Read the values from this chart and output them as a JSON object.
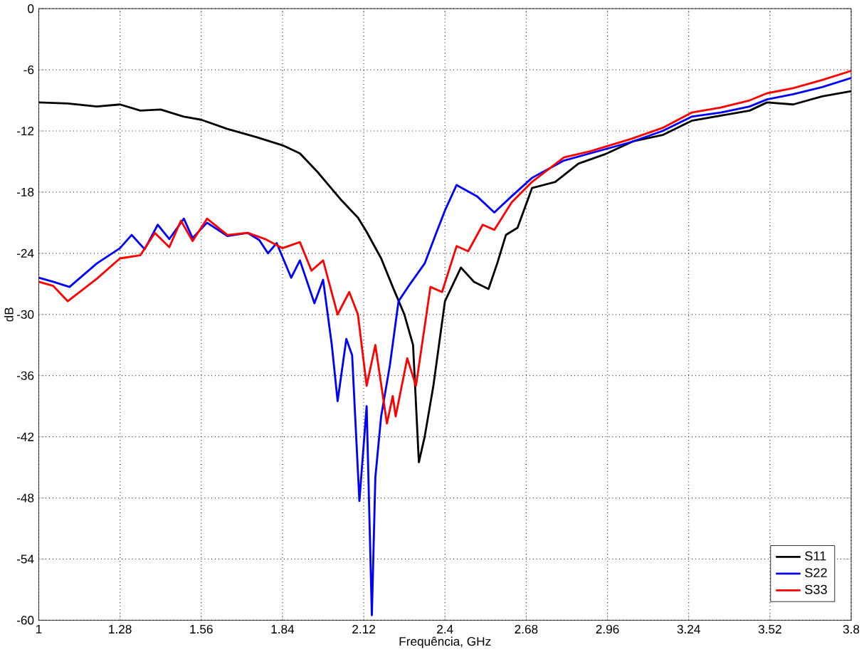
{
  "chart_data": {
    "type": "line",
    "xlabel": "Frequência, GHz",
    "ylabel": "dB",
    "xlim": [
      1,
      3.8
    ],
    "ylim": [
      -60,
      0
    ],
    "xticks": [
      1,
      1.28,
      1.56,
      1.84,
      2.12,
      2.4,
      2.68,
      2.96,
      3.24,
      3.52,
      3.8
    ],
    "yticks": [
      -60,
      -54,
      -48,
      -42,
      -36,
      -30,
      -24,
      -18,
      -12,
      -6,
      0
    ],
    "grid": true,
    "legend": "bottom right",
    "line_style": "solid",
    "marker": "none",
    "series": [
      {
        "name": "S11",
        "color": "#000000",
        "x": [
          1,
          1.1,
          1.2,
          1.28,
          1.35,
          1.42,
          1.5,
          1.56,
          1.65,
          1.75,
          1.84,
          1.9,
          1.96,
          2.04,
          2.1,
          2.13,
          2.18,
          2.22,
          2.26,
          2.29,
          2.31,
          2.33,
          2.36,
          2.4,
          2.455,
          2.5,
          2.55,
          2.58,
          2.61,
          2.65,
          2.7,
          2.78,
          2.86,
          2.95,
          3.05,
          3.15,
          3.25,
          3.35,
          3.45,
          3.51,
          3.6,
          3.7,
          3.8
        ],
        "values": [
          -9.2,
          -9.3,
          -9.6,
          -9.4,
          -10,
          -9.9,
          -10.6,
          -10.9,
          -11.8,
          -12.6,
          -13.4,
          -14.2,
          -16,
          -18.7,
          -20.5,
          -21.9,
          -24.5,
          -27.3,
          -30,
          -33,
          -44.5,
          -42,
          -37,
          -28.7,
          -25.4,
          -26.8,
          -27.5,
          -25,
          -22.2,
          -21.5,
          -17.6,
          -17,
          -15.2,
          -14.3,
          -13,
          -12.4,
          -11,
          -10.5,
          -10,
          -9.2,
          -9.4,
          -8.6,
          -8.1
        ]
      },
      {
        "name": "S22",
        "color": "#0000ff",
        "x": [
          1,
          1.05,
          1.106,
          1.2,
          1.28,
          1.32,
          1.365,
          1.41,
          1.45,
          1.5,
          1.53,
          1.58,
          1.65,
          1.72,
          1.76,
          1.79,
          1.82,
          1.87,
          1.9,
          1.95,
          1.98,
          2.01,
          2.03,
          2.06,
          2.08,
          2.105,
          2.13,
          2.148,
          2.16,
          2.18,
          2.21,
          2.24,
          2.28,
          2.33,
          2.37,
          2.4,
          2.44,
          2.51,
          2.57,
          2.63,
          2.7,
          2.81,
          2.9,
          3.04,
          3.15,
          3.25,
          3.35,
          3.45,
          3.51,
          3.6,
          3.7,
          3.8
        ],
        "values": [
          -26.4,
          -26.8,
          -27.3,
          -25,
          -23.5,
          -22.2,
          -23.6,
          -21.2,
          -22.6,
          -20.6,
          -22.5,
          -21,
          -22.3,
          -22,
          -22.7,
          -24,
          -23,
          -26.4,
          -24.7,
          -28.9,
          -26.6,
          -33,
          -38.5,
          -32.4,
          -34,
          -48.3,
          -39,
          -59.5,
          -46,
          -40,
          -35,
          -28.7,
          -27,
          -25,
          -22,
          -19.8,
          -17.3,
          -18.4,
          -20,
          -18.4,
          -16.6,
          -14.9,
          -14.2,
          -13.1,
          -12,
          -10.6,
          -10.2,
          -9.6,
          -8.9,
          -8.4,
          -7.7,
          -6.8
        ]
      },
      {
        "name": "S33",
        "color": "#ff0000",
        "x": [
          1,
          1.05,
          1.1,
          1.2,
          1.28,
          1.35,
          1.4,
          1.45,
          1.49,
          1.53,
          1.58,
          1.65,
          1.72,
          1.78,
          1.84,
          1.9,
          1.94,
          1.98,
          2.03,
          2.07,
          2.1,
          2.13,
          2.16,
          2.2,
          2.22,
          2.23,
          2.27,
          2.3,
          2.35,
          2.39,
          2.44,
          2.48,
          2.53,
          2.57,
          2.63,
          2.7,
          2.81,
          2.9,
          3.04,
          3.15,
          3.25,
          3.35,
          3.45,
          3.51,
          3.6,
          3.7,
          3.8
        ],
        "values": [
          -26.8,
          -27.2,
          -28.7,
          -26.5,
          -24.5,
          -24.2,
          -22,
          -23.4,
          -20.8,
          -22.8,
          -20.6,
          -22.2,
          -22,
          -22.6,
          -23.5,
          -22.9,
          -25.7,
          -24.7,
          -30,
          -27.8,
          -30,
          -37,
          -33,
          -40.7,
          -38,
          -40,
          -34.3,
          -37,
          -27.3,
          -27.8,
          -23.3,
          -23.8,
          -21.2,
          -21.7,
          -19,
          -17,
          -14.6,
          -14,
          -12.8,
          -11.7,
          -10.2,
          -9.7,
          -9,
          -8.3,
          -7.8,
          -7,
          -6.1
        ]
      }
    ]
  }
}
